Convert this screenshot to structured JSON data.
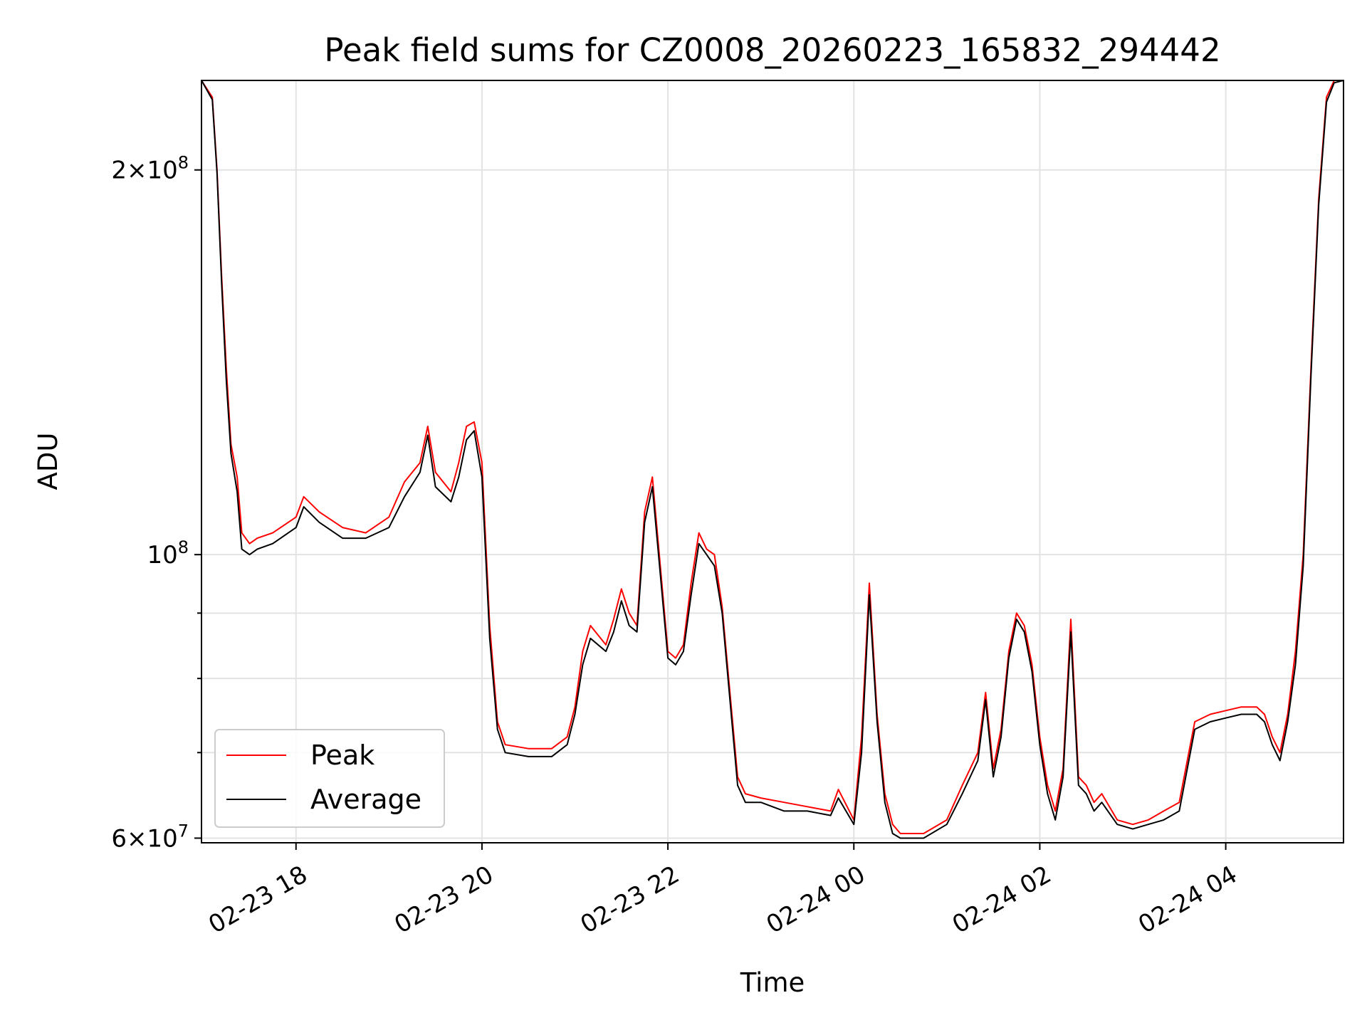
{
  "chart_data": {
    "type": "line",
    "title": "Peak field sums for CZ0008_20260223_165832_294442",
    "xlabel": "Time",
    "ylabel": "ADU",
    "yscale": "log",
    "ylim": [
      59500000,
      235000000
    ],
    "xlim": [
      "2026-02-23 16:59",
      "2026-02-24 05:16"
    ],
    "grid": true,
    "legend_position": "lower-left",
    "x_ticks": [
      {
        "value": "2026-02-23 18:00",
        "label": "02-23 18"
      },
      {
        "value": "2026-02-23 20:00",
        "label": "02-23 20"
      },
      {
        "value": "2026-02-23 22:00",
        "label": "02-23 22"
      },
      {
        "value": "2026-02-24 00:00",
        "label": "02-24 00"
      },
      {
        "value": "2026-02-24 02:00",
        "label": "02-24 02"
      },
      {
        "value": "2026-02-24 04:00",
        "label": "02-24 04"
      }
    ],
    "y_ticks": [
      {
        "value": 60000000,
        "label_main": "6×10",
        "label_exp": "7"
      },
      {
        "value": 100000000,
        "label_main": "10",
        "label_exp": "8"
      },
      {
        "value": 200000000,
        "label_main": "2×10",
        "label_exp": "8"
      }
    ],
    "y_minor_ticks": [
      70000000,
      80000000,
      90000000
    ],
    "series": [
      {
        "name": "Peak",
        "color": "#ff0000",
        "x": [
          "2026-02-23 16:59",
          "2026-02-23 17:06",
          "2026-02-23 17:09",
          "2026-02-23 17:12",
          "2026-02-23 17:15",
          "2026-02-23 17:18",
          "2026-02-23 17:22",
          "2026-02-23 17:25",
          "2026-02-23 17:30",
          "2026-02-23 17:35",
          "2026-02-23 17:45",
          "2026-02-23 18:00",
          "2026-02-23 18:05",
          "2026-02-23 18:15",
          "2026-02-23 18:30",
          "2026-02-23 18:45",
          "2026-02-23 19:00",
          "2026-02-23 19:10",
          "2026-02-23 19:20",
          "2026-02-23 19:25",
          "2026-02-23 19:30",
          "2026-02-23 19:40",
          "2026-02-23 19:45",
          "2026-02-23 19:50",
          "2026-02-23 19:55",
          "2026-02-23 20:00",
          "2026-02-23 20:05",
          "2026-02-23 20:10",
          "2026-02-23 20:15",
          "2026-02-23 20:30",
          "2026-02-23 20:45",
          "2026-02-23 20:55",
          "2026-02-23 21:00",
          "2026-02-23 21:05",
          "2026-02-23 21:10",
          "2026-02-23 21:20",
          "2026-02-23 21:25",
          "2026-02-23 21:30",
          "2026-02-23 21:35",
          "2026-02-23 21:40",
          "2026-02-23 21:45",
          "2026-02-23 21:50",
          "2026-02-23 22:00",
          "2026-02-23 22:05",
          "2026-02-23 22:10",
          "2026-02-23 22:15",
          "2026-02-23 22:20",
          "2026-02-23 22:25",
          "2026-02-23 22:30",
          "2026-02-23 22:35",
          "2026-02-23 22:45",
          "2026-02-23 22:50",
          "2026-02-23 23:00",
          "2026-02-23 23:15",
          "2026-02-23 23:30",
          "2026-02-23 23:45",
          "2026-02-23 23:50",
          "2026-02-24 00:00",
          "2026-02-24 00:05",
          "2026-02-24 00:10",
          "2026-02-24 00:15",
          "2026-02-24 00:20",
          "2026-02-24 00:25",
          "2026-02-24 00:30",
          "2026-02-24 00:45",
          "2026-02-24 01:00",
          "2026-02-24 01:10",
          "2026-02-24 01:20",
          "2026-02-24 01:25",
          "2026-02-24 01:30",
          "2026-02-24 01:35",
          "2026-02-24 01:40",
          "2026-02-24 01:45",
          "2026-02-24 01:50",
          "2026-02-24 01:55",
          "2026-02-24 02:00",
          "2026-02-24 02:05",
          "2026-02-24 02:10",
          "2026-02-24 02:15",
          "2026-02-24 02:20",
          "2026-02-24 02:25",
          "2026-02-24 02:30",
          "2026-02-24 02:35",
          "2026-02-24 02:40",
          "2026-02-24 02:50",
          "2026-02-24 03:00",
          "2026-02-24 03:10",
          "2026-02-24 03:20",
          "2026-02-24 03:30",
          "2026-02-24 03:40",
          "2026-02-24 03:50",
          "2026-02-24 04:00",
          "2026-02-24 04:10",
          "2026-02-24 04:20",
          "2026-02-24 04:25",
          "2026-02-24 04:30",
          "2026-02-24 04:35",
          "2026-02-24 04:40",
          "2026-02-24 04:45",
          "2026-02-24 04:50",
          "2026-02-24 04:55",
          "2026-02-24 05:00",
          "2026-02-24 05:05",
          "2026-02-24 05:10",
          "2026-02-24 05:16"
        ],
        "values": [
          235000000,
          228000000,
          200000000,
          165000000,
          140000000,
          122000000,
          115000000,
          104000000,
          102000000,
          103000000,
          104000000,
          107000000,
          111000000,
          108000000,
          105000000,
          104000000,
          107000000,
          114000000,
          118000000,
          126000000,
          116000000,
          112000000,
          118000000,
          126000000,
          127000000,
          118000000,
          88000000,
          74000000,
          71000000,
          70500000,
          70500000,
          72000000,
          76000000,
          84000000,
          88000000,
          85000000,
          89000000,
          94000000,
          90000000,
          88000000,
          108000000,
          115000000,
          84000000,
          83000000,
          85000000,
          95000000,
          104000000,
          101000000,
          100000000,
          91000000,
          67000000,
          65000000,
          64500000,
          64000000,
          63500000,
          63000000,
          65500000,
          62000000,
          72000000,
          95000000,
          75000000,
          65000000,
          61500000,
          60500000,
          60500000,
          62000000,
          66000000,
          70000000,
          78000000,
          68000000,
          73000000,
          84000000,
          90000000,
          88000000,
          82000000,
          72000000,
          66000000,
          63000000,
          68000000,
          89000000,
          67000000,
          66000000,
          64000000,
          65000000,
          62000000,
          61500000,
          62000000,
          63000000,
          64000000,
          74000000,
          75000000,
          75500000,
          76000000,
          76000000,
          75000000,
          72000000,
          70000000,
          75000000,
          84000000,
          100000000,
          140000000,
          190000000,
          228000000,
          235000000,
          235000000
        ]
      },
      {
        "name": "Average",
        "color": "#000000",
        "x": [
          "2026-02-23 16:59",
          "2026-02-23 17:06",
          "2026-02-23 17:09",
          "2026-02-23 17:12",
          "2026-02-23 17:15",
          "2026-02-23 17:18",
          "2026-02-23 17:22",
          "2026-02-23 17:25",
          "2026-02-23 17:30",
          "2026-02-23 17:35",
          "2026-02-23 17:45",
          "2026-02-23 18:00",
          "2026-02-23 18:05",
          "2026-02-23 18:15",
          "2026-02-23 18:30",
          "2026-02-23 18:45",
          "2026-02-23 19:00",
          "2026-02-23 19:10",
          "2026-02-23 19:20",
          "2026-02-23 19:25",
          "2026-02-23 19:30",
          "2026-02-23 19:40",
          "2026-02-23 19:45",
          "2026-02-23 19:50",
          "2026-02-23 19:55",
          "2026-02-23 20:00",
          "2026-02-23 20:05",
          "2026-02-23 20:10",
          "2026-02-23 20:15",
          "2026-02-23 20:30",
          "2026-02-23 20:45",
          "2026-02-23 20:55",
          "2026-02-23 21:00",
          "2026-02-23 21:05",
          "2026-02-23 21:10",
          "2026-02-23 21:20",
          "2026-02-23 21:25",
          "2026-02-23 21:30",
          "2026-02-23 21:35",
          "2026-02-23 21:40",
          "2026-02-23 21:45",
          "2026-02-23 21:50",
          "2026-02-23 22:00",
          "2026-02-23 22:05",
          "2026-02-23 22:10",
          "2026-02-23 22:15",
          "2026-02-23 22:20",
          "2026-02-23 22:25",
          "2026-02-23 22:30",
          "2026-02-23 22:35",
          "2026-02-23 22:45",
          "2026-02-23 22:50",
          "2026-02-23 23:00",
          "2026-02-23 23:15",
          "2026-02-23 23:30",
          "2026-02-23 23:45",
          "2026-02-23 23:50",
          "2026-02-24 00:00",
          "2026-02-24 00:05",
          "2026-02-24 00:10",
          "2026-02-24 00:15",
          "2026-02-24 00:20",
          "2026-02-24 00:25",
          "2026-02-24 00:30",
          "2026-02-24 00:45",
          "2026-02-24 01:00",
          "2026-02-24 01:10",
          "2026-02-24 01:20",
          "2026-02-24 01:25",
          "2026-02-24 01:30",
          "2026-02-24 01:35",
          "2026-02-24 01:40",
          "2026-02-24 01:45",
          "2026-02-24 01:50",
          "2026-02-24 01:55",
          "2026-02-24 02:00",
          "2026-02-24 02:05",
          "2026-02-24 02:10",
          "2026-02-24 02:15",
          "2026-02-24 02:20",
          "2026-02-24 02:25",
          "2026-02-24 02:30",
          "2026-02-24 02:35",
          "2026-02-24 02:40",
          "2026-02-24 02:50",
          "2026-02-24 03:00",
          "2026-02-24 03:10",
          "2026-02-24 03:20",
          "2026-02-24 03:30",
          "2026-02-24 03:40",
          "2026-02-24 03:50",
          "2026-02-24 04:00",
          "2026-02-24 04:10",
          "2026-02-24 04:20",
          "2026-02-24 04:25",
          "2026-02-24 04:30",
          "2026-02-24 04:35",
          "2026-02-24 04:40",
          "2026-02-24 04:45",
          "2026-02-24 04:50",
          "2026-02-24 04:55",
          "2026-02-24 05:00",
          "2026-02-24 05:05",
          "2026-02-24 05:10",
          "2026-02-24 05:16"
        ],
        "values": [
          235000000,
          227000000,
          199000000,
          163000000,
          137000000,
          120000000,
          112000000,
          101000000,
          100000000,
          101000000,
          102000000,
          105000000,
          109000000,
          106000000,
          103000000,
          103000000,
          105000000,
          111000000,
          116000000,
          124000000,
          113000000,
          110000000,
          115000000,
          123000000,
          125000000,
          115000000,
          86000000,
          73000000,
          70000000,
          69500000,
          69500000,
          71000000,
          75000000,
          82000000,
          86000000,
          84000000,
          87000000,
          92000000,
          88000000,
          87000000,
          106000000,
          113000000,
          83000000,
          82000000,
          84000000,
          93000000,
          102000000,
          100000000,
          98000000,
          90000000,
          66000000,
          64000000,
          64000000,
          63000000,
          63000000,
          62500000,
          64500000,
          61500000,
          70000000,
          93000000,
          74000000,
          64000000,
          60500000,
          60000000,
          60000000,
          61500000,
          65000000,
          69000000,
          77000000,
          67000000,
          72000000,
          83000000,
          89000000,
          87000000,
          81000000,
          71000000,
          65000000,
          62000000,
          67000000,
          87000000,
          66000000,
          65000000,
          63000000,
          64000000,
          61500000,
          61000000,
          61500000,
          62000000,
          63000000,
          73000000,
          74000000,
          74500000,
          75000000,
          75000000,
          74000000,
          71000000,
          69000000,
          74000000,
          82000000,
          98000000,
          138000000,
          188000000,
          226000000,
          234000000,
          235000000
        ]
      }
    ]
  }
}
